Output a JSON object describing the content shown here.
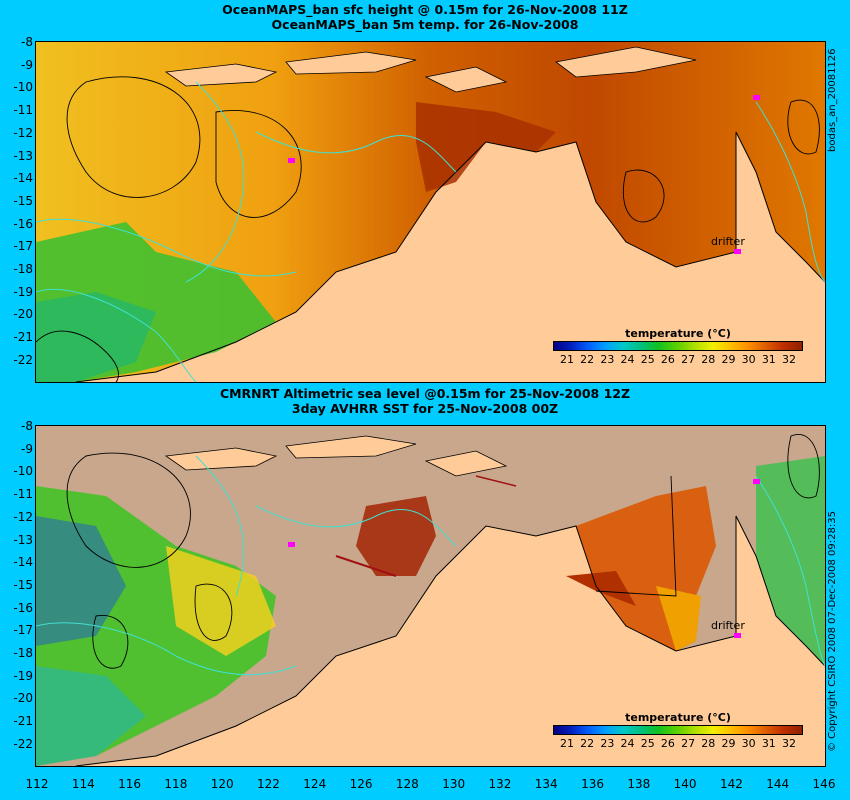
{
  "top_panel": {
    "title_line1": "OceanMAPS_ban sfc height @ 0.15m for 26-Nov-2008 11Z",
    "title_line2": "OceanMAPS_ban 5m temp. for 26-Nov-2008",
    "side_label": "bodas_an_20081126",
    "drifter_label": "drifter",
    "colorbar_title": "temperature (°C)"
  },
  "bottom_panel": {
    "title_line1": "CMRNRT Altimetric sea level  @0.15m  for 25-Nov-2008 12Z",
    "title_line2": "3day AVHRR SST for 25-Nov-2008 00Z",
    "side_label": "© Copyright CSIRO 2008   07-Dec-2008 09:28:35",
    "drifter_label": "drifter",
    "colorbar_title": "temperature (°C)"
  },
  "colorbar_ticks": [
    "21",
    "22",
    "23",
    "24",
    "25",
    "26",
    "27",
    "28",
    "29",
    "30",
    "31",
    "32"
  ],
  "y_axis_labels": [
    "-8",
    "-9",
    "-10",
    "-11",
    "-12",
    "-13",
    "-14",
    "-15",
    "-16",
    "-17",
    "-18",
    "-19",
    "-20",
    "-21",
    "-22"
  ],
  "x_axis_labels": [
    "112",
    "114",
    "116",
    "118",
    "120",
    "122",
    "124",
    "126",
    "128",
    "130",
    "132",
    "134",
    "136",
    "138",
    "140",
    "142",
    "144",
    "146"
  ],
  "colors": {
    "background": "#00ccff",
    "land": "#ffcc99",
    "no_data": "#c8a78c",
    "contour_cyan": "#40e0d0",
    "contour_black": "#000000",
    "drifter": "#ff00ff"
  }
}
